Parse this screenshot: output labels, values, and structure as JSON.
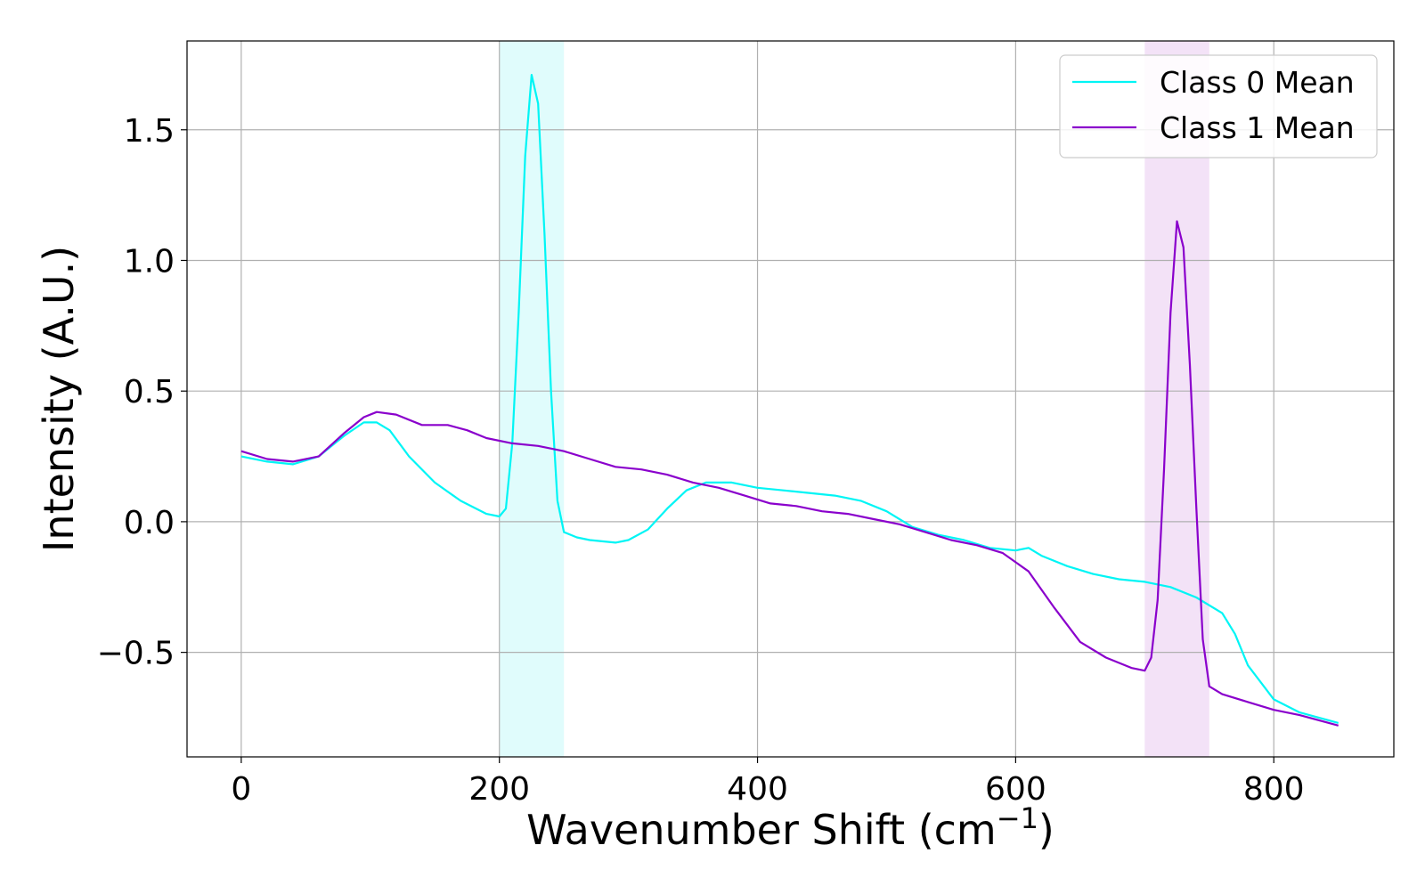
{
  "chart_data": {
    "type": "line",
    "title": "",
    "xlabel": "Wavenumber Shift (cm",
    "xlabel_superscript": "−1",
    "xlabel_suffix": ")",
    "ylabel": "Intensity (A.U.)",
    "xlim": [
      -42,
      893
    ],
    "ylim": [
      -0.9,
      1.84
    ],
    "x_ticks": [
      0,
      200,
      400,
      600,
      800
    ],
    "x_tick_labels": [
      "0",
      "200",
      "400",
      "600",
      "800"
    ],
    "y_ticks": [
      -0.5,
      0.0,
      0.5,
      1.0,
      1.5
    ],
    "y_tick_labels": [
      "−0.5",
      "0.0",
      "0.5",
      "1.0",
      "1.5"
    ],
    "grid": true,
    "legend_position": "top-right",
    "highlight_bands": [
      {
        "x": [
          200,
          250
        ],
        "color": "#e0fcfc"
      },
      {
        "x": [
          700,
          750
        ],
        "color": "#f3e2f7"
      }
    ],
    "series": [
      {
        "name": "Class 0 Mean",
        "color": "#00f5f5",
        "points": [
          [
            0,
            0.25
          ],
          [
            20,
            0.23
          ],
          [
            40,
            0.22
          ],
          [
            60,
            0.25
          ],
          [
            80,
            0.33
          ],
          [
            95,
            0.38
          ],
          [
            105,
            0.38
          ],
          [
            115,
            0.35
          ],
          [
            130,
            0.25
          ],
          [
            150,
            0.15
          ],
          [
            170,
            0.08
          ],
          [
            190,
            0.03
          ],
          [
            200,
            0.02
          ],
          [
            205,
            0.05
          ],
          [
            210,
            0.3
          ],
          [
            215,
            0.8
          ],
          [
            220,
            1.4
          ],
          [
            225,
            1.71
          ],
          [
            230,
            1.6
          ],
          [
            235,
            1.1
          ],
          [
            240,
            0.5
          ],
          [
            245,
            0.08
          ],
          [
            250,
            -0.04
          ],
          [
            260,
            -0.06
          ],
          [
            270,
            -0.07
          ],
          [
            290,
            -0.08
          ],
          [
            300,
            -0.07
          ],
          [
            315,
            -0.03
          ],
          [
            330,
            0.05
          ],
          [
            345,
            0.12
          ],
          [
            360,
            0.15
          ],
          [
            380,
            0.15
          ],
          [
            400,
            0.13
          ],
          [
            420,
            0.12
          ],
          [
            440,
            0.11
          ],
          [
            460,
            0.1
          ],
          [
            480,
            0.08
          ],
          [
            500,
            0.04
          ],
          [
            520,
            -0.02
          ],
          [
            540,
            -0.05
          ],
          [
            560,
            -0.07
          ],
          [
            580,
            -0.1
          ],
          [
            600,
            -0.11
          ],
          [
            610,
            -0.1
          ],
          [
            620,
            -0.13
          ],
          [
            640,
            -0.17
          ],
          [
            660,
            -0.2
          ],
          [
            680,
            -0.22
          ],
          [
            700,
            -0.23
          ],
          [
            720,
            -0.25
          ],
          [
            740,
            -0.29
          ],
          [
            760,
            -0.35
          ],
          [
            770,
            -0.43
          ],
          [
            780,
            -0.55
          ],
          [
            800,
            -0.68
          ],
          [
            820,
            -0.73
          ],
          [
            850,
            -0.77
          ]
        ]
      },
      {
        "name": "Class 1 Mean",
        "color": "#8a00cc",
        "points": [
          [
            0,
            0.27
          ],
          [
            20,
            0.24
          ],
          [
            40,
            0.23
          ],
          [
            60,
            0.25
          ],
          [
            80,
            0.34
          ],
          [
            95,
            0.4
          ],
          [
            105,
            0.42
          ],
          [
            120,
            0.41
          ],
          [
            140,
            0.37
          ],
          [
            160,
            0.37
          ],
          [
            175,
            0.35
          ],
          [
            190,
            0.32
          ],
          [
            210,
            0.3
          ],
          [
            230,
            0.29
          ],
          [
            250,
            0.27
          ],
          [
            270,
            0.24
          ],
          [
            290,
            0.21
          ],
          [
            310,
            0.2
          ],
          [
            330,
            0.18
          ],
          [
            350,
            0.15
          ],
          [
            370,
            0.13
          ],
          [
            390,
            0.1
          ],
          [
            410,
            0.07
          ],
          [
            430,
            0.06
          ],
          [
            450,
            0.04
          ],
          [
            470,
            0.03
          ],
          [
            490,
            0.01
          ],
          [
            510,
            -0.01
          ],
          [
            530,
            -0.04
          ],
          [
            550,
            -0.07
          ],
          [
            570,
            -0.09
          ],
          [
            590,
            -0.12
          ],
          [
            610,
            -0.19
          ],
          [
            630,
            -0.33
          ],
          [
            650,
            -0.46
          ],
          [
            670,
            -0.52
          ],
          [
            690,
            -0.56
          ],
          [
            700,
            -0.57
          ],
          [
            705,
            -0.52
          ],
          [
            710,
            -0.3
          ],
          [
            715,
            0.2
          ],
          [
            720,
            0.8
          ],
          [
            725,
            1.15
          ],
          [
            730,
            1.05
          ],
          [
            735,
            0.6
          ],
          [
            740,
            0.05
          ],
          [
            745,
            -0.45
          ],
          [
            750,
            -0.63
          ],
          [
            760,
            -0.66
          ],
          [
            780,
            -0.69
          ],
          [
            800,
            -0.72
          ],
          [
            820,
            -0.74
          ],
          [
            850,
            -0.78
          ]
        ]
      }
    ]
  }
}
